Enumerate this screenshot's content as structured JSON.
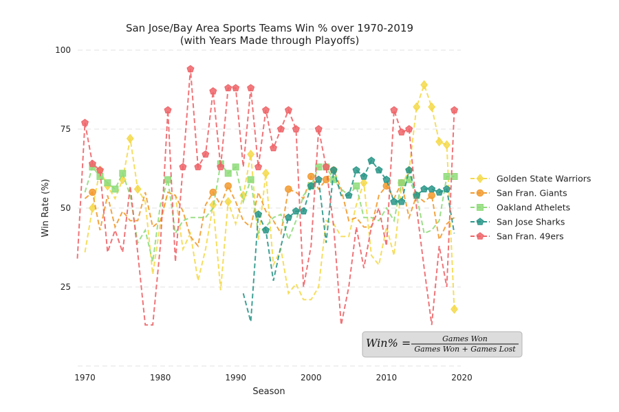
{
  "chart_data": {
    "type": "line",
    "title": "San Jose/Bay Area Sports Teams Win % over 1970-2019",
    "subtitle": "(with Years Made through Playoffs)",
    "xlabel": "Season",
    "ylabel": "Win Rate (%)",
    "xlim": [
      1969,
      2021
    ],
    "ylim": [
      0,
      102
    ],
    "xticks": [
      1970,
      1980,
      1990,
      2000,
      2010,
      2020
    ],
    "yticks": [
      25,
      50,
      75,
      100
    ],
    "grid": "horizontal dashed",
    "legend_position": "right",
    "formula": {
      "lhs": "Win% =",
      "numerator": "Games Won",
      "denominator": "Games Won + Games Lost"
    },
    "series": [
      {
        "name": "Golden State Warriors",
        "color": "#f5d94a",
        "marker": "diamond",
        "x": [
          1970,
          1971,
          1972,
          1973,
          1974,
          1975,
          1976,
          1977,
          1978,
          1979,
          1980,
          1981,
          1982,
          1983,
          1984,
          1985,
          1986,
          1987,
          1988,
          1989,
          1990,
          1991,
          1992,
          1993,
          1994,
          1995,
          1996,
          1997,
          1998,
          1999,
          2000,
          2001,
          2002,
          2003,
          2004,
          2005,
          2006,
          2007,
          2008,
          2009,
          2010,
          2011,
          2012,
          2013,
          2014,
          2015,
          2016,
          2017,
          2018,
          2019
        ],
        "y": [
          36,
          50,
          62,
          57,
          53,
          59,
          72,
          56,
          52,
          29,
          45,
          55,
          54,
          37,
          42,
          27,
          37,
          51,
          24,
          52,
          45,
          54,
          67,
          40,
          61,
          32,
          37,
          23,
          26,
          21,
          21,
          25,
          46,
          45,
          41,
          41,
          51,
          58,
          35,
          32,
          44,
          35,
          57,
          62,
          82,
          89,
          82,
          71,
          70,
          18
        ],
        "playoff_years": [
          1971,
          1972,
          1973,
          1975,
          1976,
          1977,
          1987,
          1989,
          1991,
          1992,
          1994,
          2007,
          2013,
          2014,
          2015,
          2016,
          2017,
          2018,
          2019
        ]
      },
      {
        "name": "San Fran. Giants",
        "color": "#f29a2e",
        "marker": "circle",
        "x": [
          1970,
          1971,
          1972,
          1973,
          1974,
          1975,
          1976,
          1977,
          1978,
          1979,
          1980,
          1981,
          1982,
          1983,
          1984,
          1985,
          1986,
          1987,
          1988,
          1989,
          1990,
          1991,
          1992,
          1993,
          1994,
          1995,
          1996,
          1997,
          1998,
          1999,
          2000,
          2001,
          2002,
          2003,
          2004,
          2005,
          2006,
          2007,
          2008,
          2009,
          2010,
          2011,
          2012,
          2013,
          2014,
          2015,
          2016,
          2017,
          2018,
          2019
        ],
        "y": [
          53,
          55,
          43,
          54,
          44,
          49,
          46,
          46,
          55,
          44,
          46,
          55,
          54,
          49,
          41,
          38,
          51,
          55,
          51,
          57,
          52,
          46,
          44,
          55,
          49,
          46,
          42,
          56,
          55,
          53,
          60,
          56,
          59,
          62,
          56,
          46,
          47,
          44,
          44,
          54,
          57,
          53,
          58,
          47,
          54,
          52,
          54,
          40,
          45,
          47
        ],
        "playoff_years": [
          1971,
          1987,
          1989,
          1997,
          2000,
          2002,
          2003,
          2010,
          2012,
          2014,
          2016
        ]
      },
      {
        "name": "Oakland Athelets",
        "color": "#8fdc7a",
        "marker": "square",
        "x": [
          1970,
          1971,
          1972,
          1973,
          1974,
          1975,
          1976,
          1977,
          1978,
          1979,
          1980,
          1981,
          1982,
          1983,
          1984,
          1985,
          1986,
          1987,
          1988,
          1989,
          1990,
          1991,
          1992,
          1993,
          1994,
          1995,
          1996,
          1997,
          1998,
          1999,
          2000,
          2001,
          2002,
          2003,
          2004,
          2005,
          2006,
          2007,
          2008,
          2009,
          2010,
          2011,
          2012,
          2013,
          2014,
          2015,
          2016,
          2017,
          2018,
          2019
        ],
        "y": [
          55,
          63,
          60,
          58,
          56,
          61,
          54,
          39,
          43,
          33,
          51,
          59,
          42,
          46,
          47,
          47,
          47,
          50,
          64,
          61,
          63,
          52,
          59,
          42,
          44,
          47,
          48,
          40,
          46,
          54,
          57,
          63,
          63,
          59,
          56,
          54,
          57,
          47,
          47,
          46,
          50,
          46,
          58,
          59,
          54,
          42,
          43,
          46,
          60,
          60
        ],
        "playoff_years": [
          1971,
          1972,
          1973,
          1974,
          1975,
          1981,
          1988,
          1989,
          1990,
          1992,
          2000,
          2001,
          2002,
          2003,
          2006,
          2012,
          2013,
          2014,
          2018,
          2019
        ]
      },
      {
        "name": "San Jose Sharks",
        "color": "#2a9688",
        "marker": "pentagon",
        "x": [
          1991,
          1992,
          1993,
          1994,
          1995,
          1996,
          1997,
          1998,
          1999,
          2000,
          2001,
          2002,
          2003,
          2004,
          2005,
          2006,
          2007,
          2008,
          2009,
          2010,
          2011,
          2012,
          2013,
          2014,
          2015,
          2016,
          2017,
          2018,
          2019
        ],
        "y": [
          23,
          14,
          48,
          43,
          27,
          38,
          47,
          49,
          49,
          57,
          59,
          39,
          62,
          54,
          54,
          62,
          60,
          65,
          62,
          59,
          52,
          52,
          62,
          54,
          56,
          56,
          55,
          56,
          42
        ],
        "playoff_years": [
          1993,
          1994,
          1997,
          1998,
          1999,
          2000,
          2001,
          2003,
          2005,
          2006,
          2007,
          2008,
          2009,
          2010,
          2011,
          2012,
          2013,
          2014,
          2015,
          2016,
          2017,
          2018
        ]
      },
      {
        "name": "San Fran. 49ers",
        "color": "#ee6468",
        "marker": "pentagon",
        "x": [
          1969,
          1970,
          1971,
          1972,
          1973,
          1974,
          1975,
          1976,
          1977,
          1978,
          1979,
          1980,
          1981,
          1982,
          1983,
          1984,
          1985,
          1986,
          1987,
          1988,
          1989,
          1990,
          1991,
          1992,
          1993,
          1994,
          1995,
          1996,
          1997,
          1998,
          1999,
          2000,
          2001,
          2002,
          2003,
          2004,
          2005,
          2006,
          2007,
          2008,
          2009,
          2010,
          2011,
          2012,
          2013,
          2014,
          2015,
          2016,
          2017,
          2018,
          2019
        ],
        "y": [
          34,
          77,
          64,
          62,
          36,
          43,
          36,
          57,
          36,
          13,
          13,
          38,
          81,
          33,
          63,
          94,
          63,
          67,
          87,
          63,
          88,
          88,
          63,
          88,
          63,
          81,
          69,
          75,
          81,
          75,
          25,
          38,
          75,
          63,
          44,
          13,
          25,
          44,
          31,
          44,
          50,
          38,
          81,
          74,
          75,
          50,
          31,
          13,
          38,
          25,
          81
        ],
        "playoff_years": [
          1970,
          1971,
          1972,
          1981,
          1983,
          1984,
          1985,
          1986,
          1987,
          1988,
          1989,
          1990,
          1992,
          1993,
          1994,
          1995,
          1996,
          1997,
          1998,
          2001,
          2002,
          2011,
          2012,
          2013,
          2019
        ]
      }
    ]
  }
}
